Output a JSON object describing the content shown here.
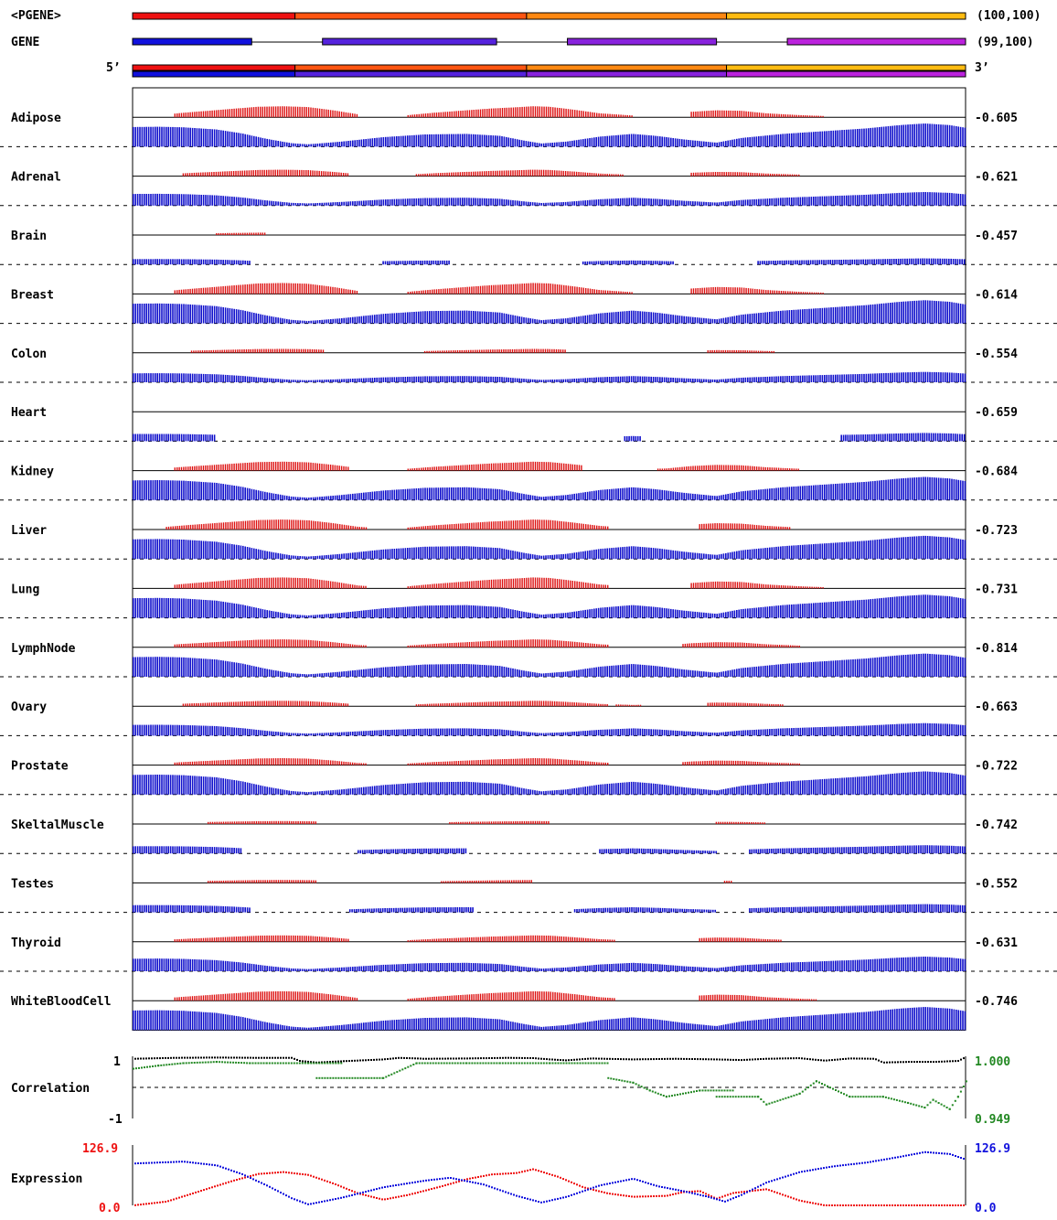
{
  "header": {
    "pgene_label": "<PGENE>",
    "pgene_range": "(100,100)",
    "gene_label": "GENE",
    "gene_range": "(99,100)",
    "five_prime": "5’",
    "three_prime": "3’"
  },
  "colors": {
    "pgene_segments": [
      "#ee1111",
      "#ff5511",
      "#ff8811",
      "#ffbb11"
    ],
    "gene_exons": [
      "#1111dd",
      "#5522dd",
      "#8822dd",
      "#bb22dd"
    ],
    "pgene_bar": "#dd1111",
    "gene_bar": "#1111cc",
    "corr_black": "#000000",
    "corr_green": "#228822",
    "expr_red": "#ee1111",
    "expr_blue": "#1111dd"
  },
  "chart_data": {
    "type": "bar",
    "x_range": [
      0,
      100
    ],
    "pgene_boundaries": [
      19.5,
      47.3,
      71.3
    ],
    "gene_exons": [
      [
        0,
        14.3
      ],
      [
        22.8,
        43.7
      ],
      [
        52.2,
        70.1
      ],
      [
        78.6,
        100
      ]
    ],
    "tissues": [
      {
        "name": "Adipose",
        "value": "-0.605",
        "red_scale": 1.0,
        "blue_scale": 1.0,
        "red_segments": [
          [
            5,
            27
          ],
          [
            33,
            60
          ],
          [
            67,
            83
          ]
        ],
        "blue_segments": [
          [
            0,
            100
          ]
        ]
      },
      {
        "name": "Adrenal",
        "value": "-0.621",
        "red_scale": 0.55,
        "blue_scale": 0.55,
        "red_segments": [
          [
            6,
            26
          ],
          [
            34,
            59
          ],
          [
            67,
            80
          ]
        ],
        "blue_segments": [
          [
            0,
            100
          ]
        ]
      },
      {
        "name": "Brain",
        "value": "-0.457",
        "red_scale": 0.15,
        "blue_scale": 0.2,
        "red_segments": [
          [
            10,
            16
          ]
        ],
        "blue_segments": [
          [
            0,
            14
          ],
          [
            30,
            38
          ],
          [
            54,
            65
          ],
          [
            75,
            100
          ]
        ]
      },
      {
        "name": "Breast",
        "value": "-0.614",
        "red_scale": 1.0,
        "blue_scale": 1.0,
        "red_segments": [
          [
            5,
            27
          ],
          [
            33,
            60
          ],
          [
            67,
            83
          ]
        ],
        "blue_segments": [
          [
            0,
            100
          ]
        ]
      },
      {
        "name": "Colon",
        "value": "-0.554",
        "red_scale": 0.3,
        "blue_scale": 0.4,
        "red_segments": [
          [
            7,
            23
          ],
          [
            35,
            52
          ],
          [
            69,
            77
          ]
        ],
        "blue_segments": [
          [
            0,
            100
          ]
        ]
      },
      {
        "name": "Heart",
        "value": "-0.659",
        "red_scale": 0.0,
        "blue_scale": 0.3,
        "red_segments": [],
        "blue_segments": [
          [
            0,
            10
          ],
          [
            59,
            61
          ],
          [
            85,
            100
          ]
        ]
      },
      {
        "name": "Kidney",
        "value": "-0.684",
        "red_scale": 0.8,
        "blue_scale": 1.0,
        "red_segments": [
          [
            5,
            26
          ],
          [
            33,
            54
          ],
          [
            63,
            80
          ]
        ],
        "blue_segments": [
          [
            0,
            100
          ]
        ]
      },
      {
        "name": "Liver",
        "value": "-0.723",
        "red_scale": 0.9,
        "blue_scale": 1.0,
        "red_segments": [
          [
            4,
            28
          ],
          [
            33,
            57
          ],
          [
            68,
            79
          ]
        ],
        "blue_segments": [
          [
            0,
            100
          ]
        ]
      },
      {
        "name": "Lung",
        "value": "-0.731",
        "red_scale": 1.0,
        "blue_scale": 1.0,
        "red_segments": [
          [
            5,
            28
          ],
          [
            33,
            57
          ],
          [
            67,
            83
          ]
        ],
        "blue_segments": [
          [
            0,
            100
          ]
        ]
      },
      {
        "name": "LymphNode",
        "value": "-0.814",
        "red_scale": 0.7,
        "blue_scale": 1.0,
        "red_segments": [
          [
            5,
            28
          ],
          [
            33,
            57
          ],
          [
            66,
            80
          ]
        ],
        "blue_segments": [
          [
            0,
            100
          ]
        ]
      },
      {
        "name": "Ovary",
        "value": "-0.663",
        "red_scale": 0.45,
        "blue_scale": 0.5,
        "red_segments": [
          [
            6,
            26
          ],
          [
            34,
            57
          ],
          [
            58,
            61
          ],
          [
            69,
            78
          ]
        ],
        "blue_segments": [
          [
            0,
            100
          ]
        ]
      },
      {
        "name": "Prostate",
        "value": "-0.722",
        "red_scale": 0.6,
        "blue_scale": 1.0,
        "red_segments": [
          [
            5,
            28
          ],
          [
            33,
            57
          ],
          [
            66,
            80
          ]
        ],
        "blue_segments": [
          [
            0,
            100
          ]
        ]
      },
      {
        "name": "SkeltalMuscle",
        "value": "-0.742",
        "red_scale": 0.2,
        "blue_scale": 0.3,
        "red_segments": [
          [
            9,
            22
          ],
          [
            38,
            50
          ],
          [
            70,
            76
          ]
        ],
        "blue_segments": [
          [
            0,
            13
          ],
          [
            27,
            40
          ],
          [
            56,
            70
          ],
          [
            74,
            100
          ]
        ]
      },
      {
        "name": "Testes",
        "value": "-0.552",
        "red_scale": 0.2,
        "blue_scale": 0.3,
        "red_segments": [
          [
            9,
            22
          ],
          [
            37,
            48
          ],
          [
            71,
            72
          ]
        ],
        "blue_segments": [
          [
            0,
            14
          ],
          [
            26,
            41
          ],
          [
            53,
            70
          ],
          [
            74,
            100
          ]
        ]
      },
      {
        "name": "Thyroid",
        "value": "-0.631",
        "red_scale": 0.55,
        "blue_scale": 0.6,
        "red_segments": [
          [
            5,
            26
          ],
          [
            33,
            58
          ],
          [
            68,
            78
          ]
        ],
        "blue_segments": [
          [
            0,
            100
          ]
        ]
      },
      {
        "name": "WhiteBloodCell",
        "value": "-0.746",
        "red_scale": 0.85,
        "blue_scale": 1.0,
        "red_segments": [
          [
            5,
            27
          ],
          [
            33,
            58
          ],
          [
            68,
            82
          ]
        ],
        "blue_segments": [
          [
            0,
            100
          ]
        ]
      }
    ],
    "red_profile": [
      [
        0,
        0
      ],
      [
        3,
        0.12
      ],
      [
        6,
        0.35
      ],
      [
        10,
        0.62
      ],
      [
        13,
        0.82
      ],
      [
        15,
        0.95
      ],
      [
        18,
        1.0
      ],
      [
        21,
        0.92
      ],
      [
        24,
        0.6
      ],
      [
        27,
        0.2
      ],
      [
        30,
        0.05
      ],
      [
        33,
        0.12
      ],
      [
        36,
        0.35
      ],
      [
        40,
        0.6
      ],
      [
        43,
        0.78
      ],
      [
        46,
        0.9
      ],
      [
        48,
        1.0
      ],
      [
        50,
        0.95
      ],
      [
        53,
        0.65
      ],
      [
        56,
        0.3
      ],
      [
        60,
        0.08
      ],
      [
        64,
        0.15
      ],
      [
        67,
        0.45
      ],
      [
        70,
        0.6
      ],
      [
        73,
        0.55
      ],
      [
        76,
        0.3
      ],
      [
        80,
        0.12
      ],
      [
        83,
        0.03
      ],
      [
        86,
        0
      ],
      [
        100,
        0
      ]
    ],
    "blue_profile": [
      [
        0,
        0.65
      ],
      [
        3,
        0.66
      ],
      [
        6,
        0.64
      ],
      [
        10,
        0.56
      ],
      [
        13,
        0.42
      ],
      [
        16,
        0.22
      ],
      [
        19,
        0.06
      ],
      [
        21,
        0.02
      ],
      [
        25,
        0.12
      ],
      [
        30,
        0.28
      ],
      [
        35,
        0.38
      ],
      [
        40,
        0.4
      ],
      [
        44,
        0.33
      ],
      [
        47,
        0.15
      ],
      [
        49,
        0.05
      ],
      [
        52,
        0.12
      ],
      [
        56,
        0.3
      ],
      [
        60,
        0.4
      ],
      [
        63,
        0.32
      ],
      [
        66,
        0.2
      ],
      [
        70,
        0.08
      ],
      [
        73,
        0.25
      ],
      [
        78,
        0.4
      ],
      [
        83,
        0.5
      ],
      [
        88,
        0.6
      ],
      [
        92,
        0.72
      ],
      [
        95,
        0.78
      ],
      [
        98,
        0.72
      ],
      [
        100,
        0.62
      ]
    ],
    "correlation": {
      "label": "Correlation",
      "y_top_label": "1",
      "y_bottom_label": "-1",
      "right_top_label": "1.000",
      "right_bottom_label": "0.949",
      "black_series": [
        [
          0,
          0.92
        ],
        [
          5,
          0.95
        ],
        [
          10,
          0.96
        ],
        [
          15,
          0.95
        ],
        [
          19,
          0.95
        ],
        [
          20,
          0.85
        ],
        [
          22,
          0.8
        ],
        [
          25,
          0.84
        ],
        [
          30,
          0.9
        ],
        [
          32,
          0.95
        ],
        [
          35,
          0.92
        ],
        [
          40,
          0.93
        ],
        [
          45,
          0.95
        ],
        [
          48,
          0.94
        ],
        [
          50,
          0.9
        ],
        [
          52,
          0.87
        ],
        [
          55,
          0.93
        ],
        [
          60,
          0.9
        ],
        [
          65,
          0.92
        ],
        [
          70,
          0.9
        ],
        [
          73,
          0.88
        ],
        [
          76,
          0.92
        ],
        [
          80,
          0.94
        ],
        [
          83,
          0.86
        ],
        [
          86,
          0.93
        ],
        [
          89,
          0.92
        ],
        [
          90,
          0.8
        ],
        [
          93,
          0.82
        ],
        [
          96,
          0.82
        ],
        [
          99,
          0.85
        ],
        [
          100,
          0.98
        ]
      ],
      "green_series": [
        [
          0,
          0.6
        ],
        [
          3,
          0.7
        ],
        [
          6,
          0.78
        ],
        [
          10,
          0.82
        ],
        [
          14,
          0.78
        ],
        [
          16,
          0.78
        ],
        [
          21,
          0.78
        ],
        [
          25,
          0.78
        ],
        [
          22,
          0.3
        ],
        [
          30,
          0.3
        ],
        [
          34,
          0.78
        ],
        [
          40,
          0.78
        ],
        [
          44,
          0.78
        ],
        [
          50,
          0.78
        ],
        [
          57,
          0.78
        ],
        [
          57,
          0.3
        ],
        [
          60,
          0.15
        ],
        [
          62,
          -0.1
        ],
        [
          64,
          -0.3
        ],
        [
          68,
          -0.1
        ],
        [
          72,
          -0.1
        ],
        [
          70,
          -0.3
        ],
        [
          75,
          -0.3
        ],
        [
          76,
          -0.55
        ],
        [
          80,
          -0.2
        ],
        [
          82,
          0.2
        ],
        [
          86,
          -0.3
        ],
        [
          90,
          -0.3
        ],
        [
          93,
          -0.5
        ],
        [
          95,
          -0.65
        ],
        [
          96,
          -0.4
        ],
        [
          98,
          -0.7
        ],
        [
          99,
          -0.3
        ],
        [
          100,
          0.2
        ]
      ]
    },
    "expression": {
      "label": "Expression",
      "left_top_label": "126.9",
      "left_bottom_label": "0.0",
      "right_top_label": "126.9",
      "right_bottom_label": "0.0",
      "ylim": [
        0,
        126.9
      ],
      "red_series": [
        [
          0,
          0
        ],
        [
          4,
          8
        ],
        [
          8,
          30
        ],
        [
          12,
          52
        ],
        [
          15,
          66
        ],
        [
          18,
          70
        ],
        [
          21,
          64
        ],
        [
          24,
          46
        ],
        [
          27,
          25
        ],
        [
          30,
          12
        ],
        [
          33,
          22
        ],
        [
          37,
          40
        ],
        [
          40,
          55
        ],
        [
          43,
          65
        ],
        [
          46,
          68
        ],
        [
          48,
          76
        ],
        [
          51,
          60
        ],
        [
          54,
          38
        ],
        [
          57,
          25
        ],
        [
          60,
          18
        ],
        [
          64,
          20
        ],
        [
          66,
          28
        ],
        [
          68,
          30
        ],
        [
          70,
          14
        ],
        [
          72,
          26
        ],
        [
          76,
          34
        ],
        [
          78,
          22
        ],
        [
          80,
          10
        ],
        [
          83,
          0
        ],
        [
          100,
          0
        ]
      ],
      "blue_series": [
        [
          0,
          88
        ],
        [
          3,
          90
        ],
        [
          6,
          92
        ],
        [
          10,
          84
        ],
        [
          13,
          66
        ],
        [
          16,
          42
        ],
        [
          19,
          15
        ],
        [
          21,
          2
        ],
        [
          25,
          16
        ],
        [
          30,
          38
        ],
        [
          35,
          52
        ],
        [
          38,
          58
        ],
        [
          42,
          44
        ],
        [
          46,
          20
        ],
        [
          49,
          6
        ],
        [
          52,
          18
        ],
        [
          56,
          42
        ],
        [
          60,
          56
        ],
        [
          63,
          40
        ],
        [
          66,
          30
        ],
        [
          69,
          18
        ],
        [
          71,
          8
        ],
        [
          73,
          22
        ],
        [
          76,
          48
        ],
        [
          80,
          70
        ],
        [
          84,
          82
        ],
        [
          88,
          90
        ],
        [
          92,
          102
        ],
        [
          95,
          112
        ],
        [
          98,
          108
        ],
        [
          100,
          96
        ]
      ]
    }
  }
}
